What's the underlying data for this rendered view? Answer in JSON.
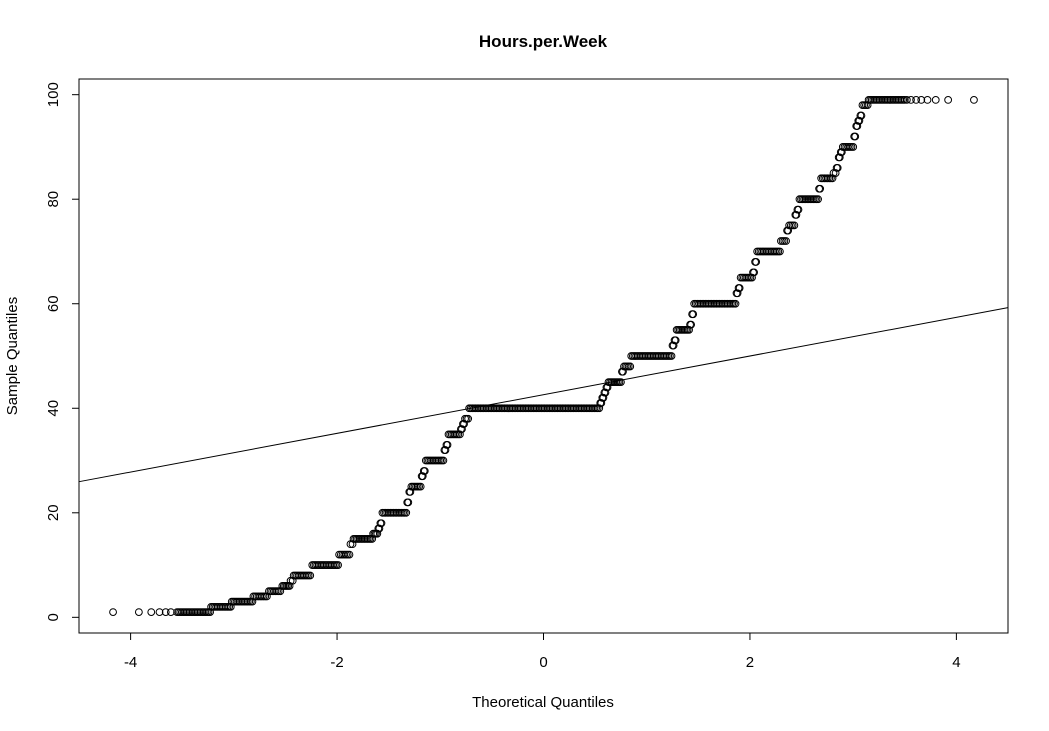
{
  "chart_data": {
    "type": "scatter",
    "subtype": "normal-qq",
    "title": "Hours.per.Week",
    "xlabel": "Theoretical Quantiles",
    "ylabel": "Sample Quantiles",
    "xlim": [
      -4.5,
      4.5
    ],
    "ylim": [
      -3,
      103
    ],
    "x_ticks": [
      -4,
      -2,
      0,
      2,
      4
    ],
    "x_tick_labels": [
      "-4",
      "-2",
      "0",
      "2",
      "4"
    ],
    "y_ticks": [
      0,
      20,
      40,
      60,
      80,
      100
    ],
    "y_tick_labels": [
      "0",
      "20",
      "40",
      "60",
      "80",
      "100"
    ],
    "grid": false,
    "marker": "open-circle",
    "reference_line": {
      "intercept": 42.6,
      "slope": 3.7
    },
    "steps": [
      {
        "y": 1,
        "x0": -3.55,
        "x1": -3.23
      },
      {
        "y": 2,
        "x0": -3.22,
        "x1": -3.03
      },
      {
        "y": 3,
        "x0": -3.02,
        "x1": -2.82
      },
      {
        "y": 4,
        "x0": -2.81,
        "x1": -2.68
      },
      {
        "y": 5,
        "x0": -2.66,
        "x1": -2.55
      },
      {
        "y": 6,
        "x0": -2.53,
        "x1": -2.46
      },
      {
        "y": 7,
        "x0": -2.45,
        "x1": -2.43
      },
      {
        "y": 8,
        "x0": -2.42,
        "x1": -2.26
      },
      {
        "y": 10,
        "x0": -2.24,
        "x1": -1.99
      },
      {
        "y": 12,
        "x0": -1.98,
        "x1": -1.88
      },
      {
        "y": 14,
        "x0": -1.87,
        "x1": -1.85
      },
      {
        "y": 15,
        "x0": -1.84,
        "x1": -1.66
      },
      {
        "y": 16,
        "x0": -1.65,
        "x1": -1.61
      },
      {
        "y": 17,
        "x0": -1.6,
        "x1": -1.59
      },
      {
        "y": 18,
        "x0": -1.58,
        "x1": -1.57
      },
      {
        "y": 20,
        "x0": -1.56,
        "x1": -1.33
      },
      {
        "y": 22,
        "x0": -1.32,
        "x1": -1.31
      },
      {
        "y": 24,
        "x0": -1.3,
        "x1": -1.29
      },
      {
        "y": 25,
        "x0": -1.28,
        "x1": -1.19
      },
      {
        "y": 27,
        "x0": -1.18,
        "x1": -1.17
      },
      {
        "y": 28,
        "x0": -1.16,
        "x1": -1.15
      },
      {
        "y": 30,
        "x0": -1.14,
        "x1": -0.97
      },
      {
        "y": 32,
        "x0": -0.96,
        "x1": -0.95
      },
      {
        "y": 33,
        "x0": -0.94,
        "x1": -0.93
      },
      {
        "y": 35,
        "x0": -0.92,
        "x1": -0.81
      },
      {
        "y": 36,
        "x0": -0.8,
        "x1": -0.79
      },
      {
        "y": 37,
        "x0": -0.78,
        "x1": -0.77
      },
      {
        "y": 38,
        "x0": -0.76,
        "x1": -0.73
      },
      {
        "y": 40,
        "x0": -0.72,
        "x1": 0.54
      },
      {
        "y": 41,
        "x0": 0.55,
        "x1": 0.56
      },
      {
        "y": 42,
        "x0": 0.57,
        "x1": 0.58
      },
      {
        "y": 43,
        "x0": 0.59,
        "x1": 0.6
      },
      {
        "y": 44,
        "x0": 0.61,
        "x1": 0.62
      },
      {
        "y": 45,
        "x0": 0.63,
        "x1": 0.75
      },
      {
        "y": 47,
        "x0": 0.76,
        "x1": 0.77
      },
      {
        "y": 48,
        "x0": 0.78,
        "x1": 0.84
      },
      {
        "y": 50,
        "x0": 0.85,
        "x1": 1.24
      },
      {
        "y": 52,
        "x0": 1.25,
        "x1": 1.26
      },
      {
        "y": 53,
        "x0": 1.27,
        "x1": 1.28
      },
      {
        "y": 55,
        "x0": 1.29,
        "x1": 1.41
      },
      {
        "y": 56,
        "x0": 1.42,
        "x1": 1.43
      },
      {
        "y": 58,
        "x0": 1.44,
        "x1": 1.45
      },
      {
        "y": 60,
        "x0": 1.46,
        "x1": 1.86
      },
      {
        "y": 62,
        "x0": 1.87,
        "x1": 1.88
      },
      {
        "y": 63,
        "x0": 1.89,
        "x1": 1.9
      },
      {
        "y": 65,
        "x0": 1.91,
        "x1": 2.02
      },
      {
        "y": 66,
        "x0": 2.03,
        "x1": 2.04
      },
      {
        "y": 68,
        "x0": 2.05,
        "x1": 2.06
      },
      {
        "y": 70,
        "x0": 2.07,
        "x1": 2.29
      },
      {
        "y": 72,
        "x0": 2.3,
        "x1": 2.35
      },
      {
        "y": 74,
        "x0": 2.36,
        "x1": 2.37
      },
      {
        "y": 75,
        "x0": 2.38,
        "x1": 2.43
      },
      {
        "y": 77,
        "x0": 2.44,
        "x1": 2.45
      },
      {
        "y": 78,
        "x0": 2.46,
        "x1": 2.47
      },
      {
        "y": 80,
        "x0": 2.48,
        "x1": 2.66
      },
      {
        "y": 82,
        "x0": 2.67,
        "x1": 2.68
      },
      {
        "y": 84,
        "x0": 2.69,
        "x1": 2.8
      },
      {
        "y": 85,
        "x0": 2.81,
        "x1": 2.83
      },
      {
        "y": 86,
        "x0": 2.84,
        "x1": 2.85
      },
      {
        "y": 88,
        "x0": 2.86,
        "x1": 2.87
      },
      {
        "y": 89,
        "x0": 2.88,
        "x1": 2.89
      },
      {
        "y": 90,
        "x0": 2.9,
        "x1": 3.0
      },
      {
        "y": 92,
        "x0": 3.01,
        "x1": 3.02
      },
      {
        "y": 94,
        "x0": 3.03,
        "x1": 3.04
      },
      {
        "y": 95,
        "x0": 3.05,
        "x1": 3.06
      },
      {
        "y": 96,
        "x0": 3.07,
        "x1": 3.08
      },
      {
        "y": 98,
        "x0": 3.09,
        "x1": 3.14
      },
      {
        "y": 99,
        "x0": 3.15,
        "x1": 3.5
      }
    ],
    "sparse_points": [
      {
        "x": -4.17,
        "y": 1
      },
      {
        "x": -3.92,
        "y": 1
      },
      {
        "x": -3.8,
        "y": 1
      },
      {
        "x": -3.72,
        "y": 1
      },
      {
        "x": -3.66,
        "y": 1
      },
      {
        "x": -3.61,
        "y": 1
      },
      {
        "x": 3.52,
        "y": 99
      },
      {
        "x": 3.56,
        "y": 99
      },
      {
        "x": 3.61,
        "y": 99
      },
      {
        "x": 3.66,
        "y": 99
      },
      {
        "x": 3.72,
        "y": 99
      },
      {
        "x": 3.8,
        "y": 99
      },
      {
        "x": 3.92,
        "y": 99
      },
      {
        "x": 4.17,
        "y": 99
      }
    ]
  }
}
